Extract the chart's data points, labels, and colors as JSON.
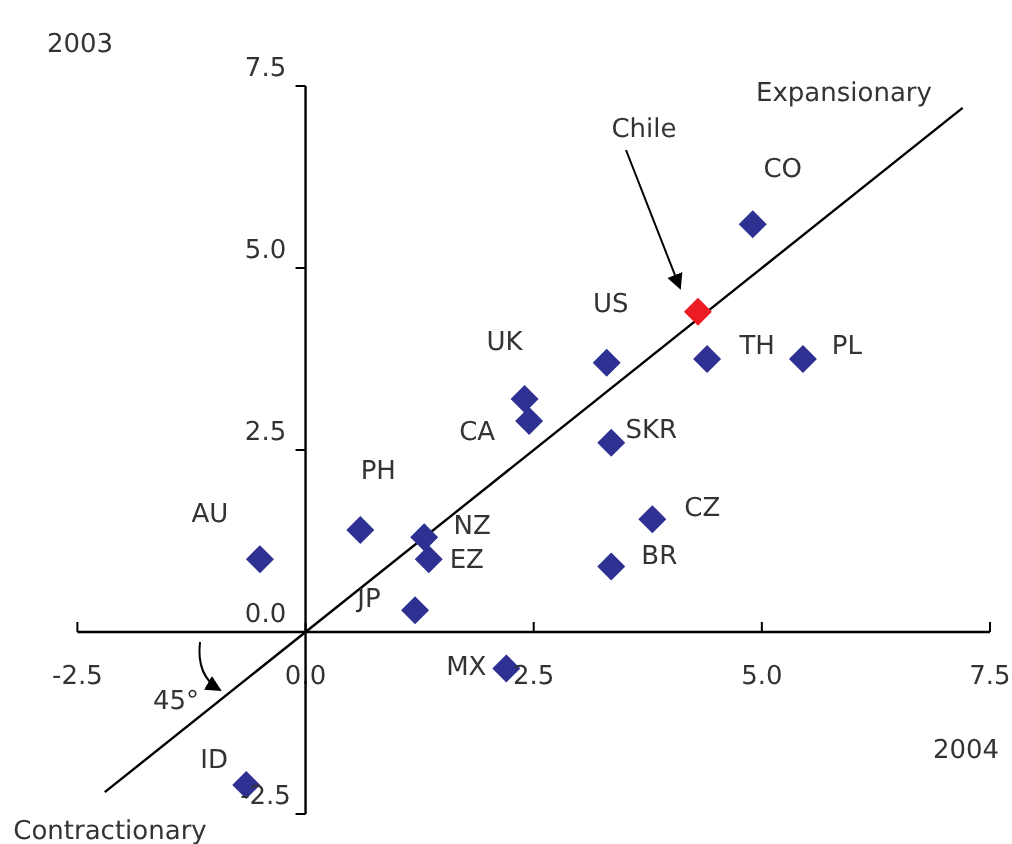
{
  "chart_data": {
    "type": "scatter",
    "xlabel": "2004",
    "ylabel": "2003",
    "xlim": [
      -2.5,
      7.5
    ],
    "ylim": [
      -2.5,
      7.5
    ],
    "xticks": [
      -2.5,
      {
        "value": 0,
        "label": "0.0"
      },
      2.5,
      {
        "value": 5,
        "label": "5.0"
      },
      7.5
    ],
    "yticks": [
      -2.5,
      {
        "value": 0,
        "label": "0.0"
      },
      2.5,
      {
        "value": 5,
        "label": "5.0"
      },
      7.5
    ],
    "marker": "diamond",
    "series": [
      {
        "x": [
          4.9,
          4.3,
          3.3,
          4.4,
          5.45,
          2.4,
          2.45,
          3.35,
          3.8,
          3.35,
          0.6,
          -0.5,
          1.3,
          1.35,
          1.2,
          2.2,
          -0.65
        ],
        "values": [
          5.6,
          4.4,
          3.7,
          3.75,
          3.75,
          3.2,
          2.9,
          2.6,
          1.55,
          0.9,
          1.4,
          1.0,
          1.3,
          1.0,
          0.3,
          -0.5,
          -2.1
        ],
        "colors": [
          "#2e3192",
          "#ed1c24",
          "#2e3192",
          "#2e3192",
          "#2e3192",
          "#2e3192",
          "#2e3192",
          "#2e3192",
          "#2e3192",
          "#2e3192",
          "#2e3192",
          "#2e3192",
          "#2e3192",
          "#2e3192",
          "#2e3192",
          "#2e3192",
          "#2e3192"
        ]
      },
      {
        "type": "line",
        "color": "#000000",
        "marker": "none",
        "x": [
          -2.2,
          7.2
        ],
        "values": [
          -2.2,
          7.2
        ]
      }
    ],
    "annotations": [
      {
        "text": "CO",
        "x": 4.9,
        "y": 5.6
      },
      "Chile",
      {
        "text": "US",
        "x": 3.3,
        "y": 3.7
      },
      {
        "text": "TH",
        "x": 4.4,
        "y": 3.75
      },
      {
        "text": "PL",
        "x": 5.45,
        "y": 3.75
      },
      {
        "text": "UK",
        "x": 2.4,
        "y": 3.2
      },
      {
        "text": "CA",
        "x": 2.45,
        "y": 2.9
      },
      {
        "text": "SKR",
        "x": 3.35,
        "y": 2.6
      },
      {
        "text": "CZ",
        "x": 3.8,
        "y": 1.55
      },
      {
        "text": "BR",
        "x": 3.35,
        "y": 0.9
      },
      {
        "text": "PH",
        "x": 0.6,
        "y": 1.4
      },
      {
        "text": "AU",
        "x": -0.5,
        "y": 1.0
      },
      {
        "text": "NZ",
        "x": 1.3,
        "y": 1.3
      },
      {
        "text": "EZ",
        "x": 1.35,
        "y": 1.0
      },
      {
        "text": "JP",
        "x": 1.2,
        "y": 0.3
      },
      {
        "text": "MX",
        "x": 2.2,
        "y": -0.5
      },
      {
        "text": "ID",
        "x": -0.65,
        "y": -2.1
      },
      "Expansionary",
      "Contractionary",
      "45°"
    ]
  }
}
